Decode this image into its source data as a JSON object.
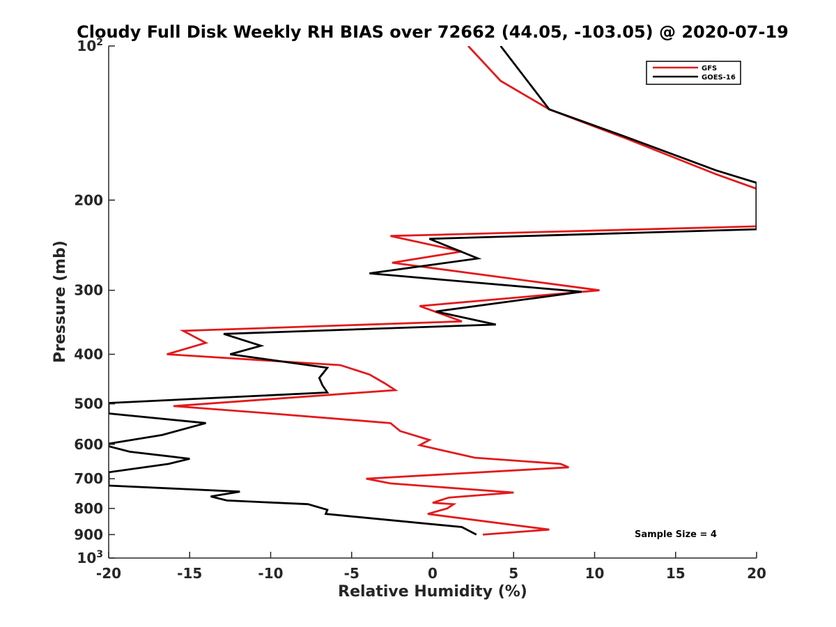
{
  "chart_data": {
    "type": "line",
    "title": "Cloudy Full Disk Weekly RH BIAS over 72662 (44.05, -103.05) @ 2020-07-19",
    "xlabel": "Relative Humidity (%)",
    "ylabel": "Pressure (mb)",
    "xlim": [
      -20,
      20
    ],
    "ylim": [
      100,
      1000
    ],
    "y_scale": "log",
    "y_reversed": true,
    "grid": false,
    "legend_position": "top-right",
    "annotation": "Sample Size = 4",
    "x_ticks": [
      "-20",
      "-15",
      "-10",
      "-5",
      "0",
      "5",
      "10",
      "15",
      "20"
    ],
    "y_ticks": [
      {
        "value": 100,
        "base": "10",
        "exp": "2"
      },
      {
        "value": 200,
        "label": "200"
      },
      {
        "value": 300,
        "label": "300"
      },
      {
        "value": 400,
        "label": "400"
      },
      {
        "value": 500,
        "label": "500"
      },
      {
        "value": 600,
        "label": "600"
      },
      {
        "value": 700,
        "label": "700"
      },
      {
        "value": 800,
        "label": "800"
      },
      {
        "value": 900,
        "label": "900"
      },
      {
        "value": 1000,
        "base": "10",
        "exp": "3"
      }
    ],
    "series": [
      {
        "name": "GFS",
        "color": "#e31a1c",
        "points": [
          [
            2.2,
            100
          ],
          [
            4.2,
            117
          ],
          [
            7.2,
            133
          ],
          [
            11.8,
            151
          ],
          [
            17.5,
            178
          ],
          [
            20.0,
            190
          ],
          [
            20.0,
            225
          ],
          [
            -2.6,
            235
          ],
          [
            1.8,
            252
          ],
          [
            -2.5,
            265
          ],
          [
            10.3,
            300
          ],
          [
            -0.8,
            322
          ],
          [
            1.8,
            345
          ],
          [
            -15.4,
            360
          ],
          [
            -14.0,
            380
          ],
          [
            -16.4,
            400
          ],
          [
            -5.7,
            420
          ],
          [
            -3.9,
            438
          ],
          [
            -3.0,
            455
          ],
          [
            -2.3,
            470
          ],
          [
            -16.0,
            505
          ],
          [
            -10.0,
            522
          ],
          [
            -2.6,
            545
          ],
          [
            -2.0,
            565
          ],
          [
            -0.2,
            588
          ],
          [
            -0.8,
            602
          ],
          [
            2.6,
            637
          ],
          [
            7.9,
            655
          ],
          [
            8.4,
            665
          ],
          [
            -4.1,
            700
          ],
          [
            -2.6,
            715
          ],
          [
            5.0,
            745
          ],
          [
            1.0,
            762
          ],
          [
            0.0,
            780
          ],
          [
            1.3,
            785
          ],
          [
            0.9,
            800
          ],
          [
            -0.3,
            820
          ],
          [
            7.2,
            880
          ],
          [
            3.1,
            900
          ]
        ]
      },
      {
        "name": "GOES-16",
        "color": "#000000",
        "points": [
          [
            4.2,
            100
          ],
          [
            7.2,
            133
          ],
          [
            11.8,
            150
          ],
          [
            17.5,
            175
          ],
          [
            20.0,
            185
          ],
          [
            20.0,
            228
          ],
          [
            -0.2,
            238
          ],
          [
            2.8,
            260
          ],
          [
            -3.9,
            278
          ],
          [
            9.2,
            302
          ],
          [
            0.2,
            330
          ],
          [
            3.9,
            350
          ],
          [
            -12.9,
            365
          ],
          [
            -10.6,
            385
          ],
          [
            -12.5,
            400
          ],
          [
            -6.5,
            425
          ],
          [
            -7.0,
            445
          ],
          [
            -6.8,
            460
          ],
          [
            -6.5,
            475
          ],
          [
            -20.0,
            498
          ],
          [
            -20.0,
            522
          ],
          [
            -14.0,
            545
          ],
          [
            -16.7,
            575
          ],
          [
            -20.0,
            598
          ],
          [
            -20.0,
            605
          ],
          [
            -18.7,
            620
          ],
          [
            -15.0,
            640
          ],
          [
            -16.3,
            655
          ],
          [
            -20.0,
            680
          ],
          [
            -20.0,
            722
          ],
          [
            -11.9,
            742
          ],
          [
            -13.7,
            758
          ],
          [
            -12.7,
            772
          ],
          [
            -7.7,
            785
          ],
          [
            -6.5,
            805
          ],
          [
            -6.6,
            820
          ],
          [
            1.8,
            870
          ],
          [
            2.7,
            900
          ]
        ]
      }
    ]
  }
}
